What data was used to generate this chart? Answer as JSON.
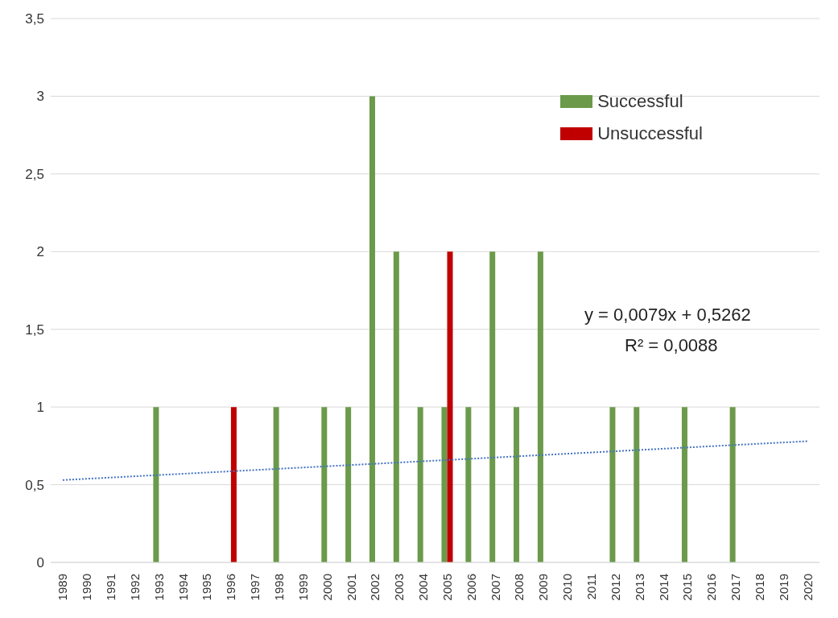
{
  "chart_data": {
    "type": "bar",
    "categories": [
      "1989",
      "1990",
      "1991",
      "1992",
      "1993",
      "1994",
      "1995",
      "1996",
      "1997",
      "1998",
      "1999",
      "2000",
      "2001",
      "2002",
      "2003",
      "2004",
      "2005",
      "2006",
      "2007",
      "2008",
      "2009",
      "2010",
      "2011",
      "2012",
      "2013",
      "2014",
      "2015",
      "2016",
      "2017",
      "2018",
      "2019",
      "2020"
    ],
    "series": [
      {
        "name": "Successful",
        "color": "#6b9a4b",
        "values": [
          null,
          null,
          null,
          null,
          1,
          null,
          null,
          null,
          null,
          1,
          null,
          1,
          1,
          3,
          2,
          1,
          1,
          1,
          2,
          1,
          2,
          null,
          null,
          1,
          1,
          null,
          1,
          null,
          1,
          null,
          null,
          null
        ]
      },
      {
        "name": "Unsuccessful",
        "color": "#c00000",
        "values": [
          null,
          null,
          null,
          null,
          null,
          null,
          null,
          1,
          null,
          null,
          null,
          null,
          null,
          null,
          null,
          null,
          2,
          null,
          null,
          null,
          null,
          null,
          null,
          null,
          null,
          null,
          null,
          null,
          null,
          null,
          null,
          null
        ]
      },
      {
        "type": "line",
        "color": "#4472c4",
        "line_style": "dotted",
        "values": [
          0.53,
          null,
          null,
          null,
          null,
          null,
          null,
          null,
          null,
          null,
          null,
          null,
          null,
          null,
          null,
          null,
          null,
          null,
          null,
          null,
          null,
          null,
          null,
          null,
          null,
          null,
          null,
          null,
          null,
          null,
          null,
          0.78
        ]
      }
    ],
    "ylim": [
      0,
      3.5
    ],
    "yticks": [
      0,
      {
        "value": 0.5,
        "label": "0,5"
      },
      1,
      {
        "value": 1.5,
        "label": "1,5"
      },
      2,
      {
        "value": 2.5,
        "label": "2,5"
      },
      3,
      {
        "value": 3.5,
        "label": "3,5"
      }
    ],
    "grid": "y",
    "legend": "top right",
    "annotations": [
      "y = 0,0079x + 0,5262",
      "R² = 0,0088"
    ]
  }
}
